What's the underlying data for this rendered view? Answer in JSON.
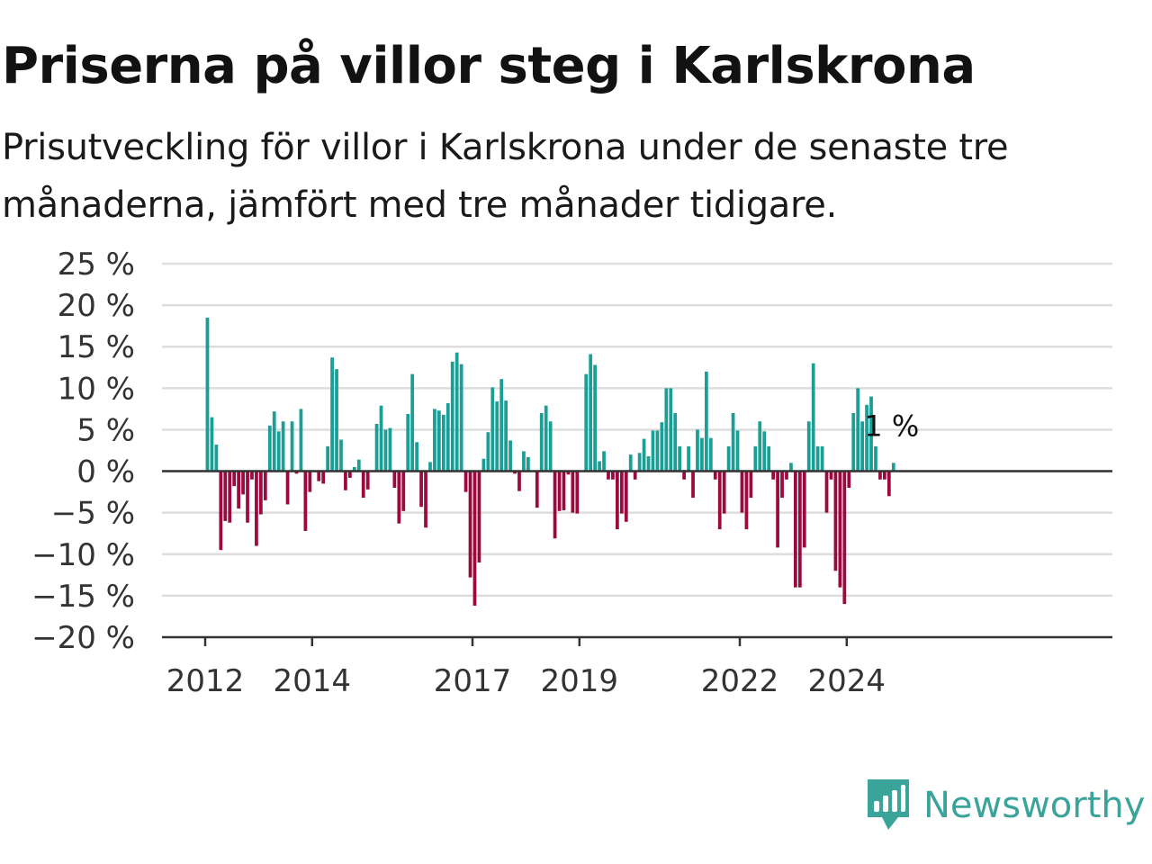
{
  "title": "Priserna på villor steg i Karlskrona",
  "subtitle": "Prisutveckling för villor i Karlskrona under de senaste tre månaderna, jämfört med tre månader tidigare.",
  "brand": {
    "name": "Newsworthy",
    "icon": "newsworthy-logo-icon",
    "color": "#3aa39a"
  },
  "colors": {
    "positive": "#1a9e96",
    "negative": "#9b0a3f",
    "grid": "#dddddd",
    "zero_line": "#333333"
  },
  "chart_data": {
    "type": "bar",
    "title": "Priserna på villor steg i Karlskrona",
    "xlabel": "",
    "ylabel": "",
    "x_ticks": [
      "2012",
      "2014",
      "2017",
      "2019",
      "2022",
      "2024"
    ],
    "y_ticks": [
      "25 %",
      "20 %",
      "15 %",
      "10 %",
      "5 %",
      "0 %",
      "−5 %",
      "−10 %",
      "−15 %",
      "−20 %"
    ],
    "ylim": [
      -20,
      25
    ],
    "grid": true,
    "x_start": "2012-01",
    "x_end": "2024-12",
    "end_label": "1 %",
    "values": [
      18.5,
      6.5,
      3.2,
      -9.5,
      -6,
      -6.2,
      -1.8,
      -4.5,
      -2.8,
      -6.2,
      -1,
      -9,
      -5.2,
      -3.5,
      5.5,
      7.2,
      4.8,
      6,
      -4,
      6,
      -0.3,
      7.5,
      -7.2,
      -2.5,
      0,
      -1.2,
      -1.5,
      3,
      13.7,
      12.3,
      3.8,
      -2.3,
      -0.8,
      0.5,
      1.4,
      -3.2,
      -2.2,
      0,
      5.7,
      7.9,
      5,
      5.2,
      -2,
      -6.3,
      -4.8,
      6.9,
      11.7,
      3.5,
      -4.3,
      -6.8,
      1.1,
      7.5,
      7.3,
      6.8,
      8.2,
      13.2,
      14.3,
      12.9,
      -2.5,
      -12.8,
      -16.2,
      -11,
      1.5,
      4.7,
      10.1,
      8.4,
      11.1,
      8.5,
      3.7,
      -0.3,
      -2.4,
      2.4,
      1.7,
      0,
      -4.4,
      7,
      7.9,
      6,
      -8.1,
      -4.8,
      -4.7,
      -0.4,
      -5,
      -5.1,
      0,
      11.7,
      14.1,
      12.8,
      1.2,
      2.4,
      -1,
      -1,
      -7,
      -5.1,
      -6.1,
      2,
      -1,
      2.2,
      3.9,
      1.8,
      4.9,
      4.9,
      5.9,
      10,
      10,
      7,
      3,
      -1,
      3,
      -3.2,
      5,
      4,
      12,
      4,
      -1,
      -7,
      -5.1,
      3,
      7,
      4.9,
      -5,
      -7,
      -3.2,
      3,
      6,
      4.8,
      3,
      -1,
      -9.2,
      -3.2,
      -1,
      1,
      -14,
      -14,
      -9.2,
      6,
      13,
      3,
      3,
      -5,
      -1,
      -12,
      -14,
      -16,
      -2,
      7,
      10,
      6,
      8,
      9,
      3,
      -1,
      -1,
      -3,
      1
    ]
  }
}
